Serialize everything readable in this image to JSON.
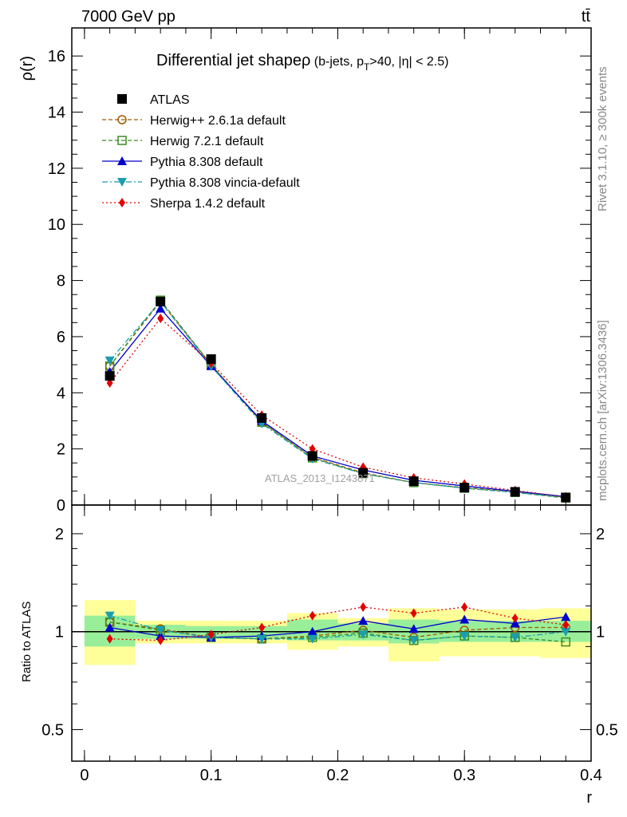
{
  "header": {
    "left": "7000 GeV pp",
    "right": "tt̄"
  },
  "title": {
    "main": "Differential jet shapeρ",
    "paren_open": " (b-jets, p",
    "sub": "T",
    "paren_close": ">40, |η| < 2.5)"
  },
  "side_labels": {
    "rivet": "Rivet 3.1.10, ≥ 300k events",
    "mcplots": "mcplots.cern.ch [arXiv:1306.3436]"
  },
  "watermark": "ATLAS_2013_I1243871",
  "colors": {
    "ATLAS": "#000000",
    "herwigpp": "#a05a00",
    "herwig7": "#3b8c1e",
    "pythia": "#0000cc",
    "vincia": "#1a9eb0",
    "sherpa": "#e00000",
    "band_yellow": "#ffff99",
    "band_green": "#99ee99"
  },
  "chart_data": {
    "type": "line",
    "x": [
      0.02,
      0.06,
      0.1,
      0.14,
      0.18,
      0.22,
      0.26,
      0.3,
      0.34,
      0.38
    ],
    "bin_edges": [
      0.0,
      0.04,
      0.08,
      0.12,
      0.16,
      0.2,
      0.24,
      0.28,
      0.32,
      0.36,
      0.4
    ],
    "xlabel": "r",
    "xticks": [
      "0",
      "0.1",
      "0.2",
      "0.3",
      "0.4"
    ],
    "xlim": [
      -0.01,
      0.4
    ],
    "main": {
      "ylabel": "ρ(r)",
      "ylim": [
        0,
        17
      ],
      "yticks": [
        "0",
        "2",
        "4",
        "6",
        "8",
        "10",
        "12",
        "14",
        "16"
      ],
      "data": {
        "name": "ATLAS",
        "values": [
          4.6,
          7.25,
          5.2,
          3.1,
          1.75,
          1.15,
          0.85,
          0.62,
          0.47,
          0.27
        ]
      },
      "series": [
        {
          "name": "Herwig++ 2.6.1a default",
          "values": [
            4.95,
            7.25,
            5.0,
            2.95,
            1.7,
            1.15,
            0.8,
            0.62,
            0.48,
            0.28
          ]
        },
        {
          "name": "Herwig 7.2.1 default",
          "values": [
            4.95,
            7.3,
            5.0,
            2.95,
            1.68,
            1.12,
            0.8,
            0.6,
            0.45,
            0.25
          ]
        },
        {
          "name": "Pythia 8.308 default",
          "values": [
            4.75,
            7.0,
            4.95,
            3.0,
            1.75,
            1.25,
            0.88,
            0.68,
            0.49,
            0.3
          ]
        },
        {
          "name": "Pythia 8.308 vincia-default",
          "values": [
            5.15,
            7.25,
            4.95,
            2.9,
            1.65,
            1.12,
            0.8,
            0.6,
            0.45,
            0.27
          ]
        },
        {
          "name": "Sherpa 1.4.2 default",
          "values": [
            4.35,
            6.65,
            5.05,
            3.2,
            2.0,
            1.35,
            0.97,
            0.75,
            0.52,
            0.29
          ]
        }
      ]
    },
    "ratio": {
      "ylabel": "Ratio to ATLAS",
      "ylim": [
        0.4,
        2.45
      ],
      "log": true,
      "yticks": [
        "0.5",
        "1",
        "2"
      ],
      "tick_values": [
        0.5,
        1,
        2
      ],
      "band_green": [
        [
          0.9,
          1.12
        ],
        [
          0.95,
          1.05
        ],
        [
          0.95,
          1.04
        ],
        [
          0.95,
          1.04
        ],
        [
          0.94,
          1.09
        ],
        [
          0.94,
          1.06
        ],
        [
          0.92,
          1.09
        ],
        [
          0.93,
          1.08
        ],
        [
          0.93,
          1.08
        ],
        [
          0.93,
          1.08
        ]
      ],
      "band_yellow": [
        [
          0.79,
          1.25
        ],
        [
          0.92,
          1.08
        ],
        [
          0.92,
          1.08
        ],
        [
          0.92,
          1.08
        ],
        [
          0.88,
          1.14
        ],
        [
          0.9,
          1.1
        ],
        [
          0.81,
          1.18
        ],
        [
          0.84,
          1.17
        ],
        [
          0.84,
          1.17
        ],
        [
          0.83,
          1.18
        ]
      ],
      "series": [
        {
          "name": "Herwig++ 2.6.1a default",
          "values": [
            1.07,
            1.02,
            0.96,
            0.95,
            0.97,
            1.01,
            0.96,
            1.01,
            1.03,
            1.03
          ]
        },
        {
          "name": "Herwig 7.2.1 default",
          "values": [
            1.07,
            1.01,
            0.96,
            0.95,
            0.96,
            0.99,
            0.94,
            0.97,
            0.96,
            0.93
          ]
        },
        {
          "name": "Pythia 8.308 default",
          "values": [
            1.03,
            0.97,
            0.96,
            0.97,
            1.0,
            1.08,
            1.02,
            1.09,
            1.06,
            1.11
          ]
        },
        {
          "name": "Pythia 8.308 vincia-default",
          "values": [
            1.12,
            1.01,
            0.96,
            0.95,
            0.95,
            0.98,
            0.94,
            0.97,
            0.96,
            1.0
          ]
        },
        {
          "name": "Sherpa 1.4.2 default",
          "values": [
            0.95,
            0.94,
            0.98,
            1.03,
            1.12,
            1.19,
            1.14,
            1.19,
            1.1,
            1.05
          ]
        }
      ]
    },
    "legend_position": "top-left"
  }
}
